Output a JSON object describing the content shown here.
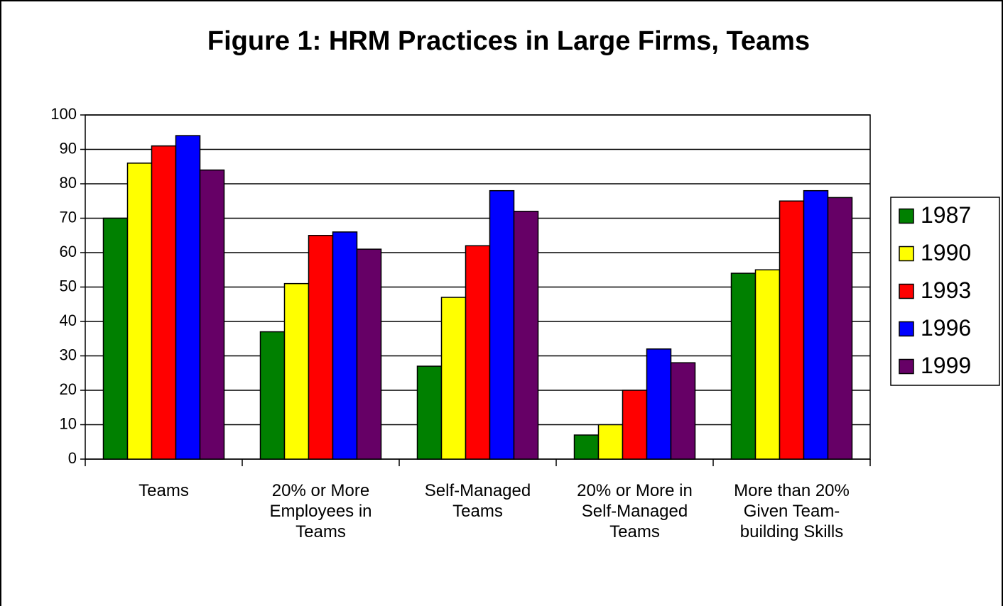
{
  "chart_data": {
    "type": "bar",
    "title": "Figure 1: HRM Practices in Large Firms, Teams",
    "categories": [
      "Teams",
      "20% or More Employees in Teams",
      "Self-Managed Teams",
      "20% or More in Self-Managed Teams",
      "More than 20% Given Team-building Skills"
    ],
    "series": [
      {
        "name": "1987",
        "color": "#008000",
        "values": [
          70,
          37,
          27,
          7,
          54
        ]
      },
      {
        "name": "1990",
        "color": "#ffff00",
        "values": [
          86,
          51,
          47,
          10,
          55
        ]
      },
      {
        "name": "1993",
        "color": "#ff0000",
        "values": [
          91,
          65,
          62,
          20,
          75
        ]
      },
      {
        "name": "1996",
        "color": "#0000ff",
        "values": [
          94,
          66,
          78,
          32,
          78
        ]
      },
      {
        "name": "1999",
        "color": "#660066",
        "values": [
          84,
          61,
          72,
          28,
          76
        ]
      }
    ],
    "ylim": [
      0,
      100
    ],
    "yticks": [
      0,
      10,
      20,
      30,
      40,
      50,
      60,
      70,
      80,
      90,
      100
    ],
    "grid": true,
    "legend": "right"
  }
}
